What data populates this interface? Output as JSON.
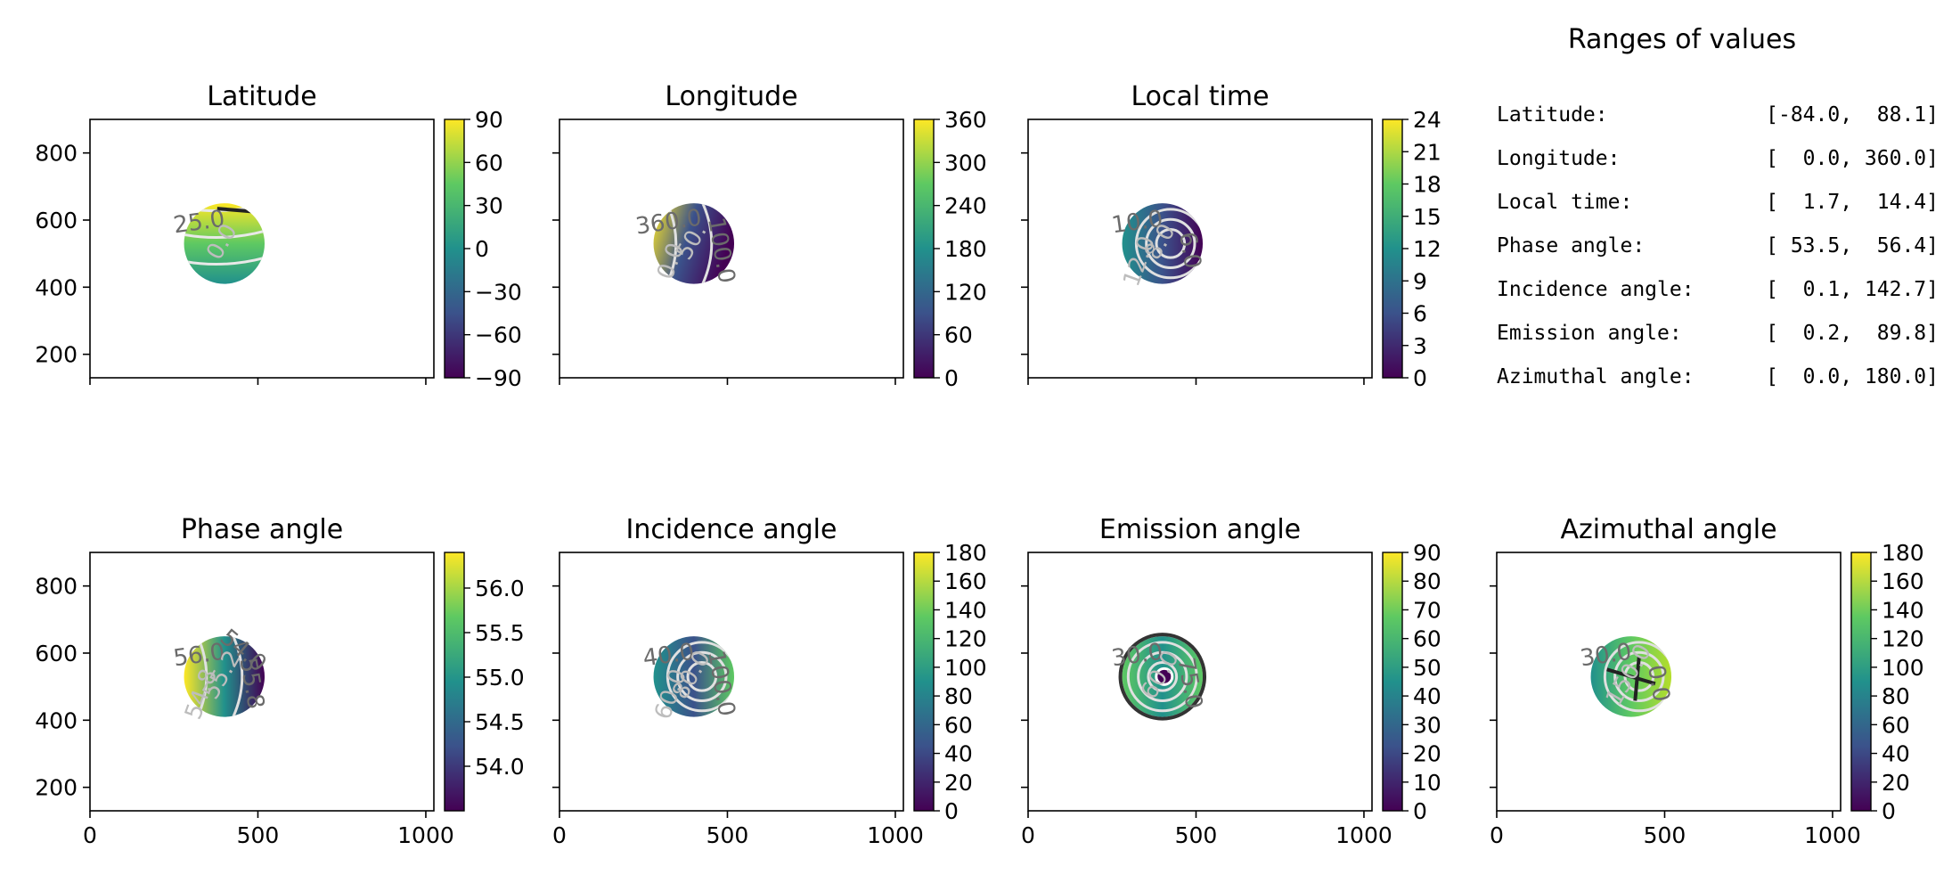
{
  "figure": {
    "ranges_title": "Ranges of values",
    "ranges": [
      {
        "label": "Latitude:",
        "value": "[-84.0,  88.1]"
      },
      {
        "label": "Longitude:",
        "value": "[  0.0, 360.0]"
      },
      {
        "label": "Local time:",
        "value": "[  1.7,  14.4]"
      },
      {
        "label": "Phase angle:",
        "value": "[ 53.5,  56.4]"
      },
      {
        "label": "Incidence angle:",
        "value": "[  0.1, 142.7]"
      },
      {
        "label": "Emission angle:",
        "value": "[  0.2,  89.8]"
      },
      {
        "label": "Azimuthal angle:",
        "value": "[  0.0, 180.0]"
      }
    ],
    "colormap": "viridis",
    "colors": {
      "viridis": [
        "#440154",
        "#3b528b",
        "#21918c",
        "#5ec962",
        "#fde725"
      ]
    }
  },
  "chart_data": [
    {
      "type": "heatmap",
      "title": "Latitude",
      "disc": {
        "center": [
          400,
          530
        ],
        "radius": 120
      },
      "xlim": [
        0,
        1024
      ],
      "ylim": [
        130,
        900
      ],
      "x_ticks": [
        "0",
        "500",
        "1000"
      ],
      "y_ticks": [
        200,
        400,
        600,
        800
      ],
      "show_x_ticklabels": false,
      "show_y_ticklabels": true,
      "cbar_range": [
        -90,
        90
      ],
      "cbar_ticks": [
        "90",
        "60",
        "30",
        "0",
        "−30",
        "−60",
        "−90"
      ],
      "contour_labels": [
        "25.0",
        "0.0"
      ]
    },
    {
      "type": "heatmap",
      "title": "Longitude",
      "disc": {
        "center": [
          400,
          530
        ],
        "radius": 120
      },
      "xlim": [
        0,
        1024
      ],
      "ylim": [
        130,
        900
      ],
      "x_ticks": [
        "0",
        "500",
        "1000"
      ],
      "y_ticks": [
        200,
        400,
        600,
        800
      ],
      "show_x_ticklabels": false,
      "show_y_ticklabels": false,
      "cbar_range": [
        0,
        360
      ],
      "cbar_ticks": [
        "360",
        "300",
        "240",
        "180",
        "120",
        "60",
        "0"
      ],
      "contour_labels": [
        "360.0",
        "50.",
        "100.0",
        "0.0"
      ]
    },
    {
      "type": "heatmap",
      "title": "Local time",
      "disc": {
        "center": [
          400,
          530
        ],
        "radius": 120
      },
      "xlim": [
        0,
        1024
      ],
      "ylim": [
        130,
        900
      ],
      "x_ticks": [
        "0",
        "500",
        "1000"
      ],
      "y_ticks": [
        200,
        400,
        600,
        800
      ],
      "show_x_ticklabels": false,
      "show_y_ticklabels": false,
      "cbar_range": [
        0,
        24
      ],
      "cbar_ticks": [
        "24",
        "21",
        "18",
        "15",
        "12",
        "9",
        "6",
        "3",
        "0"
      ],
      "contour_labels": [
        "10.0",
        "8.0",
        "6.0",
        "12.0"
      ]
    },
    {
      "type": "heatmap",
      "title": "Phase angle",
      "disc": {
        "center": [
          400,
          530
        ],
        "radius": 120
      },
      "xlim": [
        0,
        1024
      ],
      "ylim": [
        130,
        900
      ],
      "x_ticks": [
        "0",
        "500",
        "1000"
      ],
      "y_ticks": [
        200,
        400,
        600,
        800
      ],
      "show_x_ticklabels": true,
      "show_y_ticklabels": true,
      "cbar_range": [
        53.5,
        56.4
      ],
      "cbar_ticks": [
        "56.0",
        "55.5",
        "55.0",
        "54.5",
        "54.0"
      ],
      "contour_labels": [
        "56.0",
        "55.2",
        "55.8",
        "54.8",
        "54.0"
      ]
    },
    {
      "type": "heatmap",
      "title": "Incidence angle",
      "disc": {
        "center": [
          400,
          530
        ],
        "radius": 120
      },
      "xlim": [
        0,
        1024
      ],
      "ylim": [
        130,
        900
      ],
      "x_ticks": [
        "0",
        "500",
        "1000"
      ],
      "y_ticks": [
        200,
        400,
        600,
        800
      ],
      "show_x_ticklabels": true,
      "show_y_ticklabels": false,
      "cbar_range": [
        0,
        180
      ],
      "cbar_ticks": [
        "180",
        "160",
        "140",
        "120",
        "100",
        "80",
        "60",
        "40",
        "20",
        "0"
      ],
      "contour_labels": [
        "40.0",
        "80.0",
        "100.0",
        "60.0"
      ]
    },
    {
      "type": "heatmap",
      "title": "Emission angle",
      "disc": {
        "center": [
          400,
          530
        ],
        "radius": 120
      },
      "xlim": [
        0,
        1024
      ],
      "ylim": [
        130,
        900
      ],
      "x_ticks": [
        "0",
        "500",
        "1000"
      ],
      "y_ticks": [
        200,
        400,
        600,
        800
      ],
      "show_x_ticklabels": true,
      "show_y_ticklabels": false,
      "cbar_range": [
        0,
        90
      ],
      "cbar_ticks": [
        "90",
        "80",
        "70",
        "60",
        "50",
        "40",
        "30",
        "20",
        "10",
        "0"
      ],
      "contour_labels": [
        "30.0",
        "60.0",
        "75.0"
      ]
    },
    {
      "type": "heatmap",
      "title": "Azimuthal angle",
      "disc": {
        "center": [
          400,
          530
        ],
        "radius": 120
      },
      "xlim": [
        0,
        1024
      ],
      "ylim": [
        130,
        900
      ],
      "x_ticks": [
        "0",
        "500",
        "1000"
      ],
      "y_ticks": [
        200,
        400,
        600,
        800
      ],
      "show_x_ticklabels": true,
      "show_y_ticklabels": false,
      "cbar_range": [
        0,
        180
      ],
      "cbar_ticks": [
        "180",
        "160",
        "140",
        "120",
        "100",
        "80",
        "60",
        "40",
        "20",
        "0"
      ],
      "contour_labels": [
        "30.0",
        "150.0",
        "0.0"
      ]
    }
  ]
}
